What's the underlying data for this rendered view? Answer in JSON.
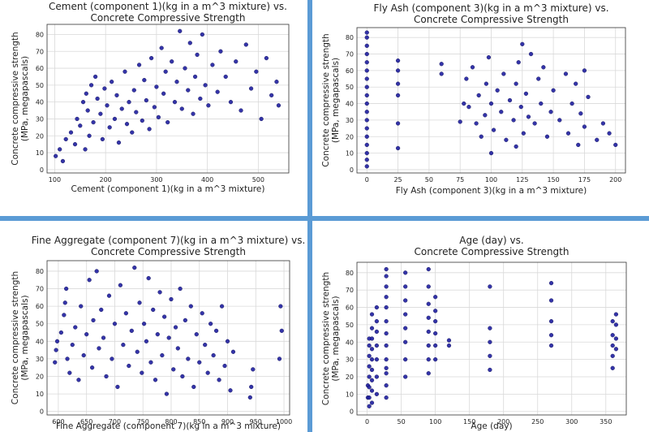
{
  "chart_data": [
    {
      "type": "scatter",
      "title_lines": [
        "Cement (component 1)(kg in a m^3 mixture) vs.",
        "Concrete Compressive Strength"
      ],
      "xlabel": "Cement (component 1)(kg in a m^3 mixture)",
      "ylabel_lines": [
        "Concrete compressive strength",
        "(MPa, megapascals)"
      ],
      "xlim": [
        85,
        560
      ],
      "ylim": [
        -2,
        86
      ],
      "xticks": [
        100,
        200,
        300,
        400,
        500
      ],
      "yticks": [
        0,
        10,
        20,
        30,
        40,
        50,
        60,
        70,
        80
      ],
      "grid": true,
      "series": [
        {
          "x": [
            102,
            110,
            116,
            122,
            132,
            140,
            144,
            150,
            156,
            160,
            162,
            165,
            168,
            172,
            176,
            180,
            184,
            190,
            194,
            198,
            203,
            208,
            212,
            218,
            222,
            226,
            232,
            238,
            242,
            246,
            252,
            256,
            260,
            266,
            272,
            276,
            280,
            286,
            290,
            296,
            300,
            304,
            310,
            314,
            318,
            322,
            330,
            336,
            340,
            346,
            350,
            356,
            362,
            366,
            372,
            376,
            380,
            386,
            390,
            396,
            402,
            410,
            420,
            426,
            436,
            446,
            456,
            466,
            476,
            486,
            496,
            506,
            516,
            526,
            536,
            540
          ],
          "y": [
            8,
            12,
            5,
            18,
            22,
            15,
            30,
            26,
            40,
            12,
            45,
            35,
            20,
            50,
            28,
            55,
            42,
            33,
            18,
            48,
            38,
            25,
            52,
            30,
            44,
            16,
            36,
            58,
            27,
            40,
            22,
            47,
            34,
            62,
            29,
            53,
            41,
            24,
            66,
            37,
            49,
            31,
            72,
            45,
            58,
            28,
            64,
            40,
            52,
            82,
            36,
            60,
            47,
            75,
            33,
            55,
            68,
            42,
            80,
            50,
            38,
            62,
            46,
            70,
            55,
            40,
            64,
            35,
            74,
            48,
            58,
            30,
            66,
            44,
            52,
            38
          ]
        }
      ]
    },
    {
      "type": "scatter",
      "title_lines": [
        "Fly Ash (component 3)(kg in a m^3 mixture) vs.",
        "Concrete Compressive Strength"
      ],
      "xlabel": "Fly Ash (component 3)(kg in a m^3 mixture)",
      "ylabel_lines": [
        "Concrete compressive strength",
        "(MPa, megapascals)"
      ],
      "xlim": [
        -8,
        208
      ],
      "ylim": [
        -2,
        86
      ],
      "xticks": [
        0,
        25,
        50,
        75,
        100,
        125,
        150,
        175,
        200
      ],
      "yticks": [
        0,
        10,
        20,
        30,
        40,
        50,
        60,
        70,
        80
      ],
      "grid": true,
      "series": [
        {
          "x": [
            0,
            0,
            0,
            0,
            0,
            0,
            0,
            0,
            0,
            0,
            0,
            0,
            0,
            0,
            0,
            0,
            0,
            0,
            25,
            25,
            25,
            25,
            25,
            25,
            60,
            60,
            75,
            78,
            80,
            82,
            85,
            88,
            90,
            92,
            95,
            96,
            98,
            100,
            100,
            102,
            105,
            108,
            110,
            112,
            115,
            118,
            120,
            120,
            122,
            124,
            125,
            126,
            128,
            130,
            132,
            135,
            138,
            140,
            142,
            145,
            148,
            150,
            155,
            160,
            162,
            165,
            168,
            170,
            172,
            175,
            175,
            178,
            185,
            190,
            195,
            200
          ],
          "y": [
            2,
            6,
            10,
            15,
            20,
            25,
            30,
            35,
            40,
            45,
            50,
            55,
            60,
            65,
            70,
            75,
            80,
            83,
            13,
            28,
            45,
            52,
            60,
            66,
            58,
            64,
            29,
            40,
            55,
            38,
            62,
            28,
            45,
            20,
            33,
            52,
            68,
            10,
            40,
            24,
            48,
            35,
            58,
            18,
            42,
            30,
            14,
            52,
            65,
            38,
            76,
            22,
            46,
            32,
            70,
            28,
            55,
            40,
            62,
            20,
            35,
            48,
            30,
            58,
            22,
            40,
            52,
            15,
            34,
            26,
            60,
            44,
            18,
            28,
            22,
            15
          ]
        }
      ]
    },
    {
      "type": "scatter",
      "title_lines": [
        "Fine Aggregate (component 7)(kg in a m^3 mixture) vs.",
        "Concrete Compressive Strength"
      ],
      "xlabel": "Fine Aggregate (component 7)(kg in a m^3 mixture)",
      "ylabel_lines": [
        "Concrete compressive strength",
        "(MPa, megapascals)"
      ],
      "xlim": [
        580,
        1010
      ],
      "ylim": [
        -2,
        86
      ],
      "xticks": [
        600,
        650,
        700,
        750,
        800,
        850,
        900,
        950,
        1000
      ],
      "yticks": [
        0,
        10,
        20,
        30,
        40,
        50,
        60,
        70,
        80
      ],
      "grid": true,
      "series": [
        {
          "x": [
            594,
            596,
            598,
            605,
            610,
            612,
            614,
            616,
            620,
            625,
            630,
            636,
            640,
            645,
            650,
            655,
            660,
            662,
            668,
            672,
            676,
            680,
            685,
            690,
            695,
            700,
            705,
            710,
            715,
            720,
            725,
            730,
            735,
            740,
            744,
            748,
            752,
            756,
            760,
            764,
            768,
            772,
            776,
            780,
            784,
            788,
            792,
            796,
            800,
            804,
            808,
            812,
            816,
            820,
            825,
            830,
            835,
            840,
            845,
            850,
            855,
            860,
            865,
            870,
            875,
            880,
            885,
            890,
            895,
            900,
            905,
            910,
            940,
            942,
            945,
            992,
            994,
            996
          ],
          "y": [
            28,
            35,
            40,
            45,
            55,
            62,
            70,
            30,
            22,
            38,
            48,
            18,
            60,
            32,
            44,
            75,
            25,
            52,
            80,
            36,
            58,
            42,
            20,
            66,
            30,
            50,
            14,
            72,
            38,
            56,
            26,
            46,
            82,
            34,
            62,
            22,
            50,
            40,
            76,
            28,
            58,
            18,
            44,
            68,
            32,
            54,
            10,
            42,
            64,
            24,
            48,
            36,
            70,
            20,
            52,
            30,
            60,
            14,
            44,
            28,
            56,
            38,
            22,
            50,
            32,
            46,
            18,
            60,
            26,
            40,
            12,
            34,
            8,
            14,
            24,
            30,
            60,
            46
          ]
        }
      ]
    },
    {
      "type": "scatter",
      "title_lines": [
        "Age (day) vs.",
        "Concrete Compressive Strength"
      ],
      "xlabel": "Age (day)",
      "ylabel_lines": [
        "Concrete compressive strength",
        "(MPa, megapascals)"
      ],
      "xlim": [
        -15,
        380
      ],
      "ylim": [
        -2,
        86
      ],
      "xticks": [
        0,
        50,
        100,
        150,
        200,
        250,
        300,
        350
      ],
      "yticks": [
        0,
        10,
        20,
        30,
        40,
        50,
        60,
        70,
        80
      ],
      "grid": true,
      "series": [
        {
          "x": [
            1,
            1,
            3,
            3,
            3,
            3,
            3,
            3,
            3,
            3,
            7,
            7,
            7,
            7,
            7,
            7,
            7,
            7,
            7,
            14,
            14,
            14,
            14,
            14,
            14,
            14,
            28,
            28,
            28,
            28,
            28,
            28,
            28,
            28,
            28,
            28,
            28,
            28,
            28,
            56,
            56,
            56,
            56,
            56,
            56,
            56,
            56,
            90,
            90,
            90,
            90,
            90,
            90,
            90,
            90,
            100,
            100,
            100,
            100,
            100,
            100,
            120,
            120,
            180,
            180,
            180,
            180,
            180,
            270,
            270,
            270,
            270,
            270,
            360,
            360,
            360,
            360,
            360,
            365,
            365,
            365,
            365
          ],
          "y": [
            8,
            15,
            3,
            8,
            14,
            20,
            26,
            32,
            38,
            42,
            5,
            12,
            18,
            24,
            30,
            36,
            42,
            48,
            56,
            10,
            20,
            30,
            38,
            46,
            52,
            60,
            8,
            15,
            22,
            30,
            38,
            45,
            52,
            60,
            66,
            72,
            78,
            82,
            25,
            20,
            30,
            40,
            48,
            56,
            64,
            72,
            80,
            22,
            30,
            38,
            46,
            54,
            62,
            72,
            82,
            30,
            38,
            45,
            52,
            58,
            66,
            38,
            41,
            24,
            32,
            40,
            48,
            72,
            38,
            44,
            52,
            64,
            74,
            25,
            32,
            38,
            44,
            52,
            36,
            42,
            50,
            56
          ]
        }
      ]
    }
  ]
}
